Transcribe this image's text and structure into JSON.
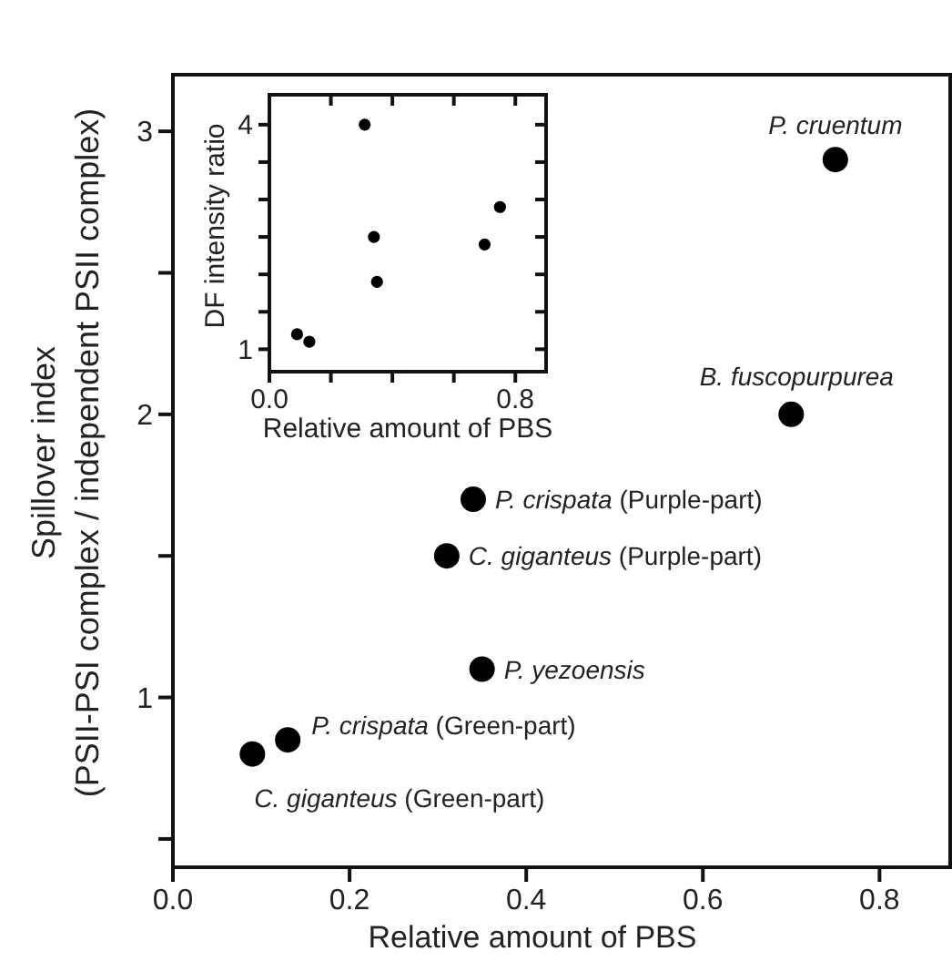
{
  "chart_data": [
    {
      "type": "scatter",
      "xlabel": "Relative amount of PBS",
      "ylabel": "Spillover index\n(PSII-PSI complex / independent PSII complex)",
      "x": [
        0.75,
        0.7,
        0.34,
        0.31,
        0.35,
        0.13,
        0.09
      ],
      "series": [
        {
          "color": "#000000",
          "values": [
            2.9,
            2.0,
            1.7,
            1.5,
            1.1,
            0.85,
            0.8
          ]
        }
      ],
      "marker": "circle",
      "xlim": [
        0,
        0.88
      ],
      "ylim": [
        0.4,
        3.2
      ],
      "xticks": [
        {
          "value": 0,
          "label": "0.0"
        },
        {
          "value": 0.2,
          "label": "0.2"
        },
        {
          "value": 0.4,
          "label": "0.4"
        },
        {
          "value": 0.6,
          "label": "0.6"
        },
        {
          "value": 0.8,
          "label": "0.8"
        }
      ],
      "yticks": [
        {
          "value": 0.5,
          "label": null
        },
        1,
        {
          "value": 1.5,
          "label": null
        },
        2,
        {
          "value": 2.5,
          "label": null
        },
        3
      ],
      "annotations": [
        {
          "text": "P. cruentum",
          "x": 0.75,
          "y": 2.9
        },
        {
          "text": "B. fuscopurpurea",
          "x": 0.7,
          "y": 2.0
        },
        {
          "text": "P. crispata (Purple-part)",
          "x": 0.34,
          "y": 1.7
        },
        {
          "text": "C. giganteus (Purple-part)",
          "x": 0.31,
          "y": 1.5
        },
        {
          "text": "P. yezoensis",
          "x": 0.35,
          "y": 1.1
        },
        {
          "text": "P. crispata (Green-part)",
          "x": 0.13,
          "y": 0.85
        },
        {
          "text": "C. giganteus (Green-part)",
          "x": 0.09,
          "y": 0.8
        }
      ]
    },
    {
      "type": "scatter",
      "xlabel": "Relative amount of PBS",
      "ylabel": "DF intensity ratio",
      "x": [
        0.31,
        0.34,
        0.35,
        0.09,
        0.13,
        0.7,
        0.75
      ],
      "series": [
        {
          "color": "#000000",
          "values": [
            4.0,
            2.5,
            1.9,
            1.2,
            1.1,
            2.4,
            2.9
          ]
        }
      ],
      "marker": "circle",
      "xlim": [
        0,
        0.9
      ],
      "ylim": [
        0.7,
        4.4
      ],
      "xticks": [
        {
          "value": 0,
          "label": "0.0"
        },
        {
          "value": 0.2,
          "label": null
        },
        {
          "value": 0.4,
          "label": null
        },
        {
          "value": 0.6,
          "label": null
        },
        {
          "value": 0.8,
          "label": "0.8"
        }
      ],
      "yticks": [
        1,
        {
          "value": 1.5,
          "label": null
        },
        {
          "value": 2,
          "label": null
        },
        {
          "value": 2.5,
          "label": null
        },
        {
          "value": 3,
          "label": null
        },
        {
          "value": 3.5,
          "label": null
        },
        4
      ]
    }
  ]
}
